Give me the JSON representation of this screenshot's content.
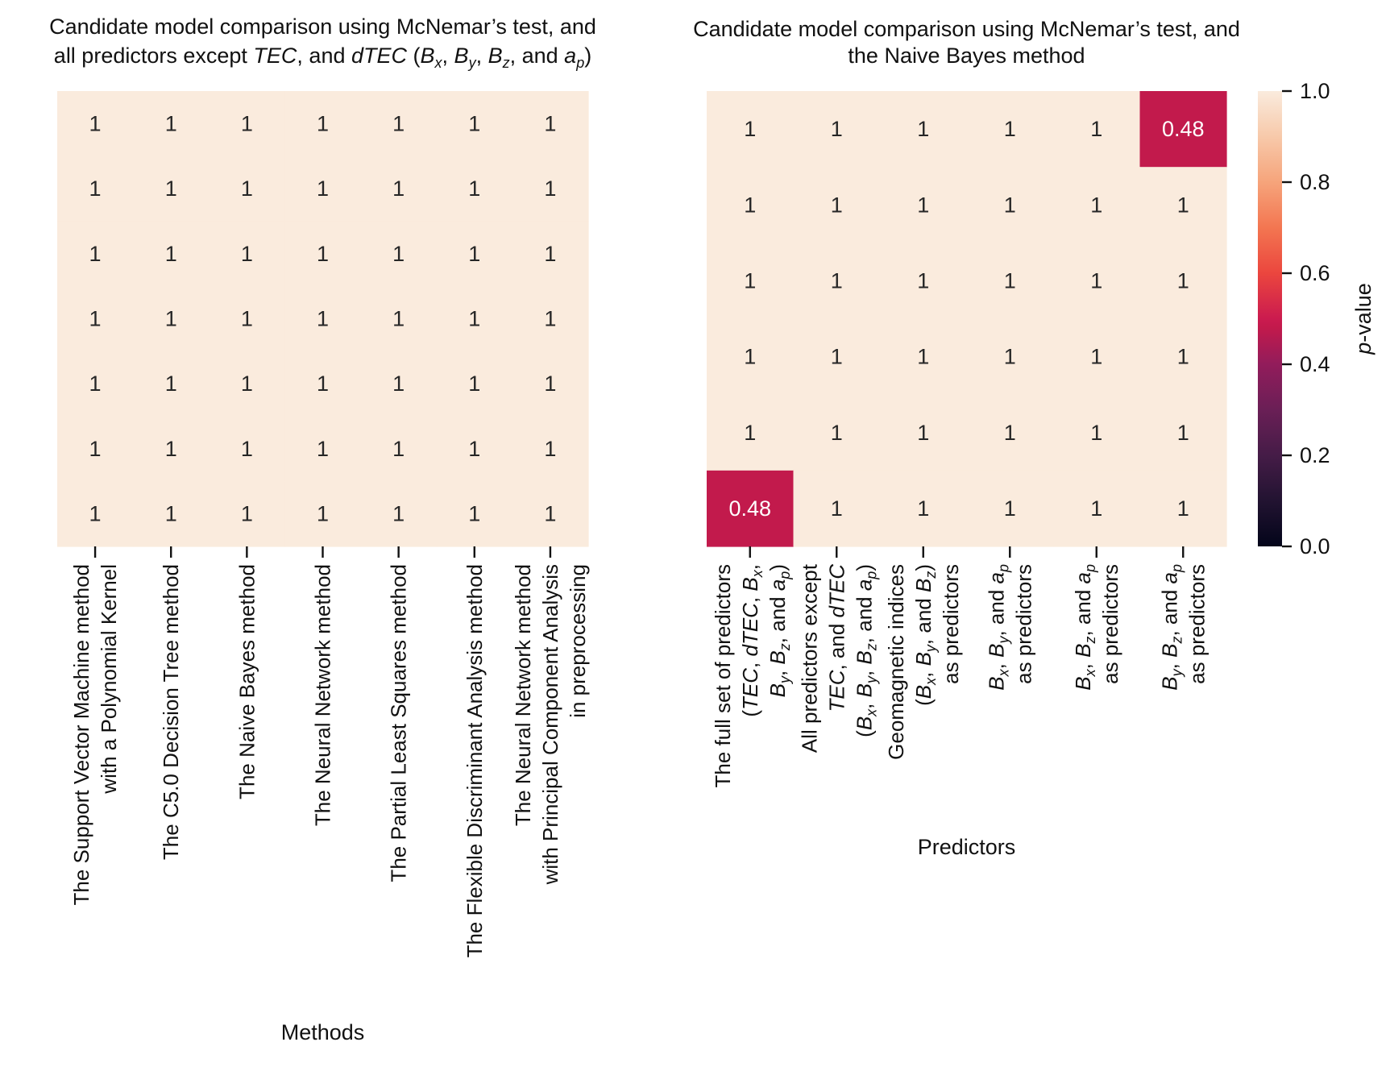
{
  "chart_data": [
    {
      "type": "heatmap",
      "title_lines": [
        "Candidate model comparison using McNemar’s test, and",
        "all predictors except TEC, and dTEC (Bx, By, Bz, and ap)"
      ],
      "title_rich": [
        [
          {
            "t": "Candidate model comparison using McNemar’s test, and"
          }
        ],
        [
          {
            "t": "all predictors except "
          },
          {
            "t": "TEC",
            "i": true
          },
          {
            "t": ", and "
          },
          {
            "t": "dTEC",
            "i": true
          },
          {
            "t": " ("
          },
          {
            "t": "B",
            "i": true
          },
          {
            "t": "x",
            "i": true,
            "sub": true
          },
          {
            "t": ", "
          },
          {
            "t": "B",
            "i": true
          },
          {
            "t": "y",
            "i": true,
            "sub": true
          },
          {
            "t": ", "
          },
          {
            "t": "B",
            "i": true
          },
          {
            "t": "z",
            "i": true,
            "sub": true
          },
          {
            "t": ", and "
          },
          {
            "t": "a",
            "i": true
          },
          {
            "t": "p",
            "i": true,
            "sub": true
          },
          {
            "t": ")"
          }
        ]
      ],
      "xlabel": "Methods",
      "ylabel": "",
      "x_tick_labels": [
        [
          "The Support Vector Machine method",
          "with a Polynomial Kernel"
        ],
        [
          "The C5.0 Decision Tree method"
        ],
        [
          "The Naive Bayes method"
        ],
        [
          "The Neural Network method"
        ],
        [
          "The Partial Least Squares method"
        ],
        [
          "The Flexible Discriminant Analysis method"
        ],
        [
          "The Neural Network method",
          "with Principal Component Analysis",
          "in preprocessing"
        ]
      ],
      "y_tick_labels": [],
      "values": [
        [
          1,
          1,
          1,
          1,
          1,
          1,
          1
        ],
        [
          1,
          1,
          1,
          1,
          1,
          1,
          1
        ],
        [
          1,
          1,
          1,
          1,
          1,
          1,
          1
        ],
        [
          1,
          1,
          1,
          1,
          1,
          1,
          1
        ],
        [
          1,
          1,
          1,
          1,
          1,
          1,
          1
        ],
        [
          1,
          1,
          1,
          1,
          1,
          1,
          1
        ],
        [
          1,
          1,
          1,
          1,
          1,
          1,
          1
        ]
      ],
      "annotations": [
        [
          "1",
          "1",
          "1",
          "1",
          "1",
          "1",
          "1"
        ],
        [
          "1",
          "1",
          "1",
          "1",
          "1",
          "1",
          "1"
        ],
        [
          "1",
          "1",
          "1",
          "1",
          "1",
          "1",
          "1"
        ],
        [
          "1",
          "1",
          "1",
          "1",
          "1",
          "1",
          "1"
        ],
        [
          "1",
          "1",
          "1",
          "1",
          "1",
          "1",
          "1"
        ],
        [
          "1",
          "1",
          "1",
          "1",
          "1",
          "1",
          "1"
        ],
        [
          "1",
          "1",
          "1",
          "1",
          "1",
          "1",
          "1"
        ]
      ],
      "value_range": [
        0,
        1
      ],
      "grid": false
    },
    {
      "type": "heatmap",
      "title_lines": [
        "Candidate model comparison using McNemar’s test, and",
        "the Naive Bayes method"
      ],
      "title_rich": [
        [
          {
            "t": "Candidate model comparison using McNemar’s test, and"
          }
        ],
        [
          {
            "t": "the Naive Bayes method"
          }
        ]
      ],
      "xlabel": "Predictors",
      "ylabel": "",
      "x_tick_labels": [
        [
          "The full set of predictors",
          "(TEC, dTEC, Bx,",
          "By, Bz, and ap)"
        ],
        [
          "All predictors except",
          "TEC, and dTEC",
          "(Bx, By, Bz, and ap)"
        ],
        [
          "Geomagnetic indices",
          "(Bx, By, and Bz)",
          "as predictors"
        ],
        [
          "Bx, By, and ap",
          "as predictors"
        ],
        [
          "Bx, Bz, and ap",
          "as predictors"
        ],
        [
          "By, Bz, and ap",
          "as predictors"
        ]
      ],
      "x_tick_labels_rich": [
        [
          [
            {
              "t": "The full set of predictors"
            }
          ],
          [
            {
              "t": "("
            },
            {
              "t": "TEC",
              "i": true
            },
            {
              "t": ", "
            },
            {
              "t": "dTEC",
              "i": true
            },
            {
              "t": ", "
            },
            {
              "t": "B",
              "i": true
            },
            {
              "t": "x",
              "i": true,
              "sub": true
            },
            {
              "t": ","
            }
          ],
          [
            {
              "t": "B",
              "i": true
            },
            {
              "t": "y",
              "i": true,
              "sub": true
            },
            {
              "t": ", "
            },
            {
              "t": "B",
              "i": true
            },
            {
              "t": "z",
              "i": true,
              "sub": true
            },
            {
              "t": ", and "
            },
            {
              "t": "a",
              "i": true
            },
            {
              "t": "p",
              "i": true,
              "sub": true
            },
            {
              "t": ")"
            }
          ]
        ],
        [
          [
            {
              "t": "All predictors except"
            }
          ],
          [
            {
              "t": "TEC",
              "i": true
            },
            {
              "t": ", and "
            },
            {
              "t": "dTEC",
              "i": true
            }
          ],
          [
            {
              "t": "("
            },
            {
              "t": "B",
              "i": true
            },
            {
              "t": "x",
              "i": true,
              "sub": true
            },
            {
              "t": ", "
            },
            {
              "t": "B",
              "i": true
            },
            {
              "t": "y",
              "i": true,
              "sub": true
            },
            {
              "t": ", "
            },
            {
              "t": "B",
              "i": true
            },
            {
              "t": "z",
              "i": true,
              "sub": true
            },
            {
              "t": ", and "
            },
            {
              "t": "a",
              "i": true
            },
            {
              "t": "p",
              "i": true,
              "sub": true
            },
            {
              "t": ")"
            }
          ]
        ],
        [
          [
            {
              "t": "Geomagnetic indices"
            }
          ],
          [
            {
              "t": "("
            },
            {
              "t": "B",
              "i": true
            },
            {
              "t": "x",
              "i": true,
              "sub": true
            },
            {
              "t": ", "
            },
            {
              "t": "B",
              "i": true
            },
            {
              "t": "y",
              "i": true,
              "sub": true
            },
            {
              "t": ", and "
            },
            {
              "t": "B",
              "i": true
            },
            {
              "t": "z",
              "i": true,
              "sub": true
            },
            {
              "t": ")"
            }
          ],
          [
            {
              "t": "as predictors"
            }
          ]
        ],
        [
          [
            {
              "t": "B",
              "i": true
            },
            {
              "t": "x",
              "i": true,
              "sub": true
            },
            {
              "t": ", "
            },
            {
              "t": "B",
              "i": true
            },
            {
              "t": "y",
              "i": true,
              "sub": true
            },
            {
              "t": ", and "
            },
            {
              "t": "a",
              "i": true
            },
            {
              "t": "p",
              "i": true,
              "sub": true
            }
          ],
          [
            {
              "t": "as predictors"
            }
          ]
        ],
        [
          [
            {
              "t": "B",
              "i": true
            },
            {
              "t": "x",
              "i": true,
              "sub": true
            },
            {
              "t": ", "
            },
            {
              "t": "B",
              "i": true
            },
            {
              "t": "z",
              "i": true,
              "sub": true
            },
            {
              "t": ", and "
            },
            {
              "t": "a",
              "i": true
            },
            {
              "t": "p",
              "i": true,
              "sub": true
            }
          ],
          [
            {
              "t": "as predictors"
            }
          ]
        ],
        [
          [
            {
              "t": "B",
              "i": true
            },
            {
              "t": "y",
              "i": true,
              "sub": true
            },
            {
              "t": ", "
            },
            {
              "t": "B",
              "i": true
            },
            {
              "t": "z",
              "i": true,
              "sub": true
            },
            {
              "t": ", and "
            },
            {
              "t": "a",
              "i": true
            },
            {
              "t": "p",
              "i": true,
              "sub": true
            }
          ],
          [
            {
              "t": "as predictors"
            }
          ]
        ]
      ],
      "y_tick_labels": [],
      "values": [
        [
          1,
          1,
          1,
          1,
          1,
          0.48
        ],
        [
          1,
          1,
          1,
          1,
          1,
          1
        ],
        [
          1,
          1,
          1,
          1,
          1,
          1
        ],
        [
          1,
          1,
          1,
          1,
          1,
          1
        ],
        [
          1,
          1,
          1,
          1,
          1,
          1
        ],
        [
          0.48,
          1,
          1,
          1,
          1,
          1
        ]
      ],
      "annotations": [
        [
          "1",
          "1",
          "1",
          "1",
          "1",
          "0.48"
        ],
        [
          "1",
          "1",
          "1",
          "1",
          "1",
          "1"
        ],
        [
          "1",
          "1",
          "1",
          "1",
          "1",
          "1"
        ],
        [
          "1",
          "1",
          "1",
          "1",
          "1",
          "1"
        ],
        [
          "1",
          "1",
          "1",
          "1",
          "1",
          "1"
        ],
        [
          "0.48",
          "1",
          "1",
          "1",
          "1",
          "1"
        ]
      ],
      "value_range": [
        0,
        1
      ],
      "grid": false,
      "colorbar": {
        "label": "p-value",
        "label_rich": [
          {
            "t": "p",
            "i": true
          },
          {
            "t": "-value"
          }
        ],
        "ticks": [
          "0.0",
          "0.2",
          "0.4",
          "0.6",
          "0.8",
          "1.0"
        ],
        "tick_values": [
          0,
          0.2,
          0.4,
          0.6,
          0.8,
          1.0
        ]
      }
    }
  ],
  "colormap": {
    "name": "rocket",
    "stops": [
      {
        "v": 0.0,
        "c": "#03051a"
      },
      {
        "v": 0.1,
        "c": "#221331"
      },
      {
        "v": 0.2,
        "c": "#451c47"
      },
      {
        "v": 0.3,
        "c": "#6a1f56"
      },
      {
        "v": 0.4,
        "c": "#921c5b"
      },
      {
        "v": 0.48,
        "c": "#c21a4c"
      },
      {
        "v": 0.5,
        "c": "#cb1b4f"
      },
      {
        "v": 0.6,
        "c": "#eb463e"
      },
      {
        "v": 0.7,
        "c": "#f37651"
      },
      {
        "v": 0.8,
        "c": "#f6a47b"
      },
      {
        "v": 0.9,
        "c": "#f7c9aa"
      },
      {
        "v": 1.0,
        "c": "#faebdd"
      }
    ]
  }
}
